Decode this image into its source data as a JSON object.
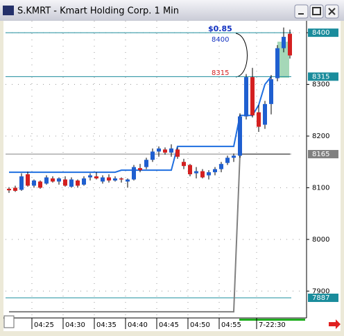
{
  "window": {
    "title": "S.KMRT - Kmart Holding Corp. 1 Min"
  },
  "chart_data": {
    "type": "candlestick",
    "categories": [
      null,
      null,
      null,
      null,
      "04:25",
      null,
      null,
      null,
      null,
      "04:30",
      null,
      null,
      null,
      null,
      "04:35",
      null,
      null,
      null,
      null,
      "04:40",
      null,
      null,
      null,
      null,
      "04:45",
      null,
      null,
      null,
      null,
      "04:50",
      null,
      null,
      null,
      null,
      "04:55",
      null,
      null,
      null,
      null,
      null,
      "7-22:30",
      null,
      null,
      null,
      null,
      null
    ],
    "open": [
      8098,
      8100,
      8096,
      8126,
      8104,
      8112,
      8108,
      8118,
      8112,
      8116,
      8102,
      8114,
      8106,
      8120,
      8122,
      8112,
      8120,
      8114,
      8118,
      8112,
      8116,
      8138,
      8140,
      8154,
      8170,
      8174,
      8168,
      8174,
      8150,
      8144,
      8128,
      8132,
      8124,
      8130,
      8136,
      8148,
      8158,
      8162,
      8238,
      8314,
      8246,
      8222,
      8262,
      8312,
      8370,
      8398
    ],
    "high": [
      8101,
      8104,
      8128,
      8131,
      8116,
      8114,
      8124,
      8122,
      8120,
      8122,
      8120,
      8116,
      8122,
      8128,
      8130,
      8124,
      8126,
      8122,
      8120,
      8118,
      8144,
      8146,
      8158,
      8176,
      8180,
      8178,
      8184,
      8178,
      8156,
      8146,
      8140,
      8136,
      8134,
      8140,
      8150,
      8162,
      8166,
      8244,
      8320,
      8332,
      8260,
      8268,
      8318,
      8376,
      8410,
      8406
    ],
    "low": [
      8090,
      8092,
      8094,
      8102,
      8100,
      8098,
      8106,
      8110,
      8106,
      8102,
      8100,
      8100,
      8104,
      8114,
      8116,
      8108,
      8110,
      8112,
      8110,
      8100,
      8114,
      8130,
      8136,
      8150,
      8160,
      8164,
      8160,
      8156,
      8136,
      8122,
      8118,
      8118,
      8116,
      8124,
      8130,
      8144,
      8150,
      8158,
      8232,
      8236,
      8208,
      8214,
      8242,
      8306,
      8362,
      8350
    ],
    "close": [
      8095,
      8094,
      8122,
      8104,
      8114,
      8100,
      8120,
      8112,
      8118,
      8104,
      8116,
      8104,
      8118,
      8124,
      8118,
      8120,
      8114,
      8118,
      8116,
      8116,
      8140,
      8134,
      8154,
      8170,
      8176,
      8168,
      8176,
      8160,
      8142,
      8126,
      8132,
      8120,
      8130,
      8136,
      8146,
      8158,
      8162,
      8238,
      8314,
      8240,
      8218,
      8262,
      8310,
      8370,
      8392,
      8356
    ],
    "up_color": "#1f5fd0",
    "down_color": "#d42020",
    "series": [
      {
        "color": "#1f6fe0",
        "values": [
          8130,
          8130,
          8130,
          8130,
          8130,
          8130,
          8130,
          8130,
          8130,
          8130,
          8130,
          8130,
          8130,
          8130,
          8130,
          8130,
          8130,
          8130,
          8134,
          8134,
          8134,
          8134,
          8134,
          8134,
          8134,
          8134,
          8134,
          8180,
          8180,
          8180,
          8180,
          8180,
          8180,
          8180,
          8180,
          8180,
          8180,
          8240,
          8240,
          8240,
          8260,
          8300,
          8315,
          null,
          null,
          null
        ]
      },
      {
        "color": "#808080",
        "values": [
          7860,
          7860,
          7860,
          7860,
          7860,
          7860,
          7860,
          7860,
          7860,
          7860,
          7860,
          7860,
          7860,
          7860,
          7860,
          7860,
          7860,
          7860,
          7860,
          7860,
          7860,
          7860,
          7860,
          7860,
          7860,
          7860,
          7860,
          7860,
          7860,
          7860,
          7860,
          7860,
          7860,
          7860,
          7860,
          7860,
          7860,
          8165,
          8165,
          8165,
          8165,
          8165,
          8165,
          8165,
          8165,
          8165
        ]
      }
    ],
    "ylim": [
      7848,
      8423
    ],
    "yticks": [
      7900,
      8000,
      8100,
      8200,
      8300,
      8400
    ],
    "grid": true,
    "levels": [
      {
        "value": 8400,
        "color": "#1a8c9c"
      },
      {
        "value": 8315,
        "color": "#1a8c9c"
      },
      {
        "value": 8165,
        "color": "#808080"
      },
      {
        "value": 7887,
        "color": "#1a8c9c"
      }
    ],
    "annotations": [
      {
        "text": "$0.85",
        "color": "#1030c0"
      },
      {
        "text": "8400",
        "color": "#1030c0"
      },
      {
        "text": "8315",
        "color": "#d42020"
      }
    ]
  }
}
